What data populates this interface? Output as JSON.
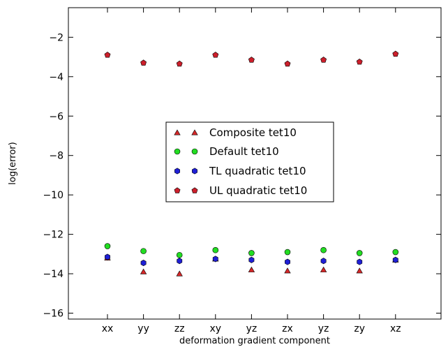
{
  "chart_data": {
    "type": "scatter",
    "title": "",
    "xlabel": "deformation gradient component",
    "ylabel": "log(error)",
    "categories": [
      "xx",
      "yy",
      "zz",
      "xy",
      "yz",
      "zx",
      "yz",
      "zy",
      "xz"
    ],
    "ylim": [
      -16.3,
      -0.5
    ],
    "yticks": [
      -2,
      -4,
      -6,
      -8,
      -10,
      -12,
      -14,
      -16
    ],
    "ytick_labels": [
      "−2",
      "−4",
      "−6",
      "−8",
      "−10",
      "−12",
      "−14",
      "−16"
    ],
    "grid": false,
    "legend_position": "center",
    "series": [
      {
        "name": "Composite tet10",
        "marker": "triangle",
        "color": "#d62728",
        "values": [
          -13.2,
          -13.9,
          -14.0,
          -13.25,
          -13.8,
          -13.85,
          -13.8,
          -13.85,
          -13.3
        ]
      },
      {
        "name": "Default tet10",
        "marker": "circle",
        "color": "#22dd22",
        "values": [
          -12.6,
          -12.85,
          -13.05,
          -12.8,
          -12.95,
          -12.9,
          -12.8,
          -12.95,
          -12.9
        ]
      },
      {
        "name": "TL quadratic tet10",
        "marker": "hexagon",
        "color": "#1f1fd6",
        "values": [
          -13.15,
          -13.45,
          -13.35,
          -13.25,
          -13.3,
          -13.4,
          -13.35,
          -13.4,
          -13.3
        ]
      },
      {
        "name": "UL quadratic tet10",
        "marker": "pentagon",
        "color": "#cc1f2b",
        "values": [
          -2.9,
          -3.3,
          -3.35,
          -2.9,
          -3.15,
          -3.35,
          -3.15,
          -3.25,
          -2.85
        ]
      }
    ]
  }
}
